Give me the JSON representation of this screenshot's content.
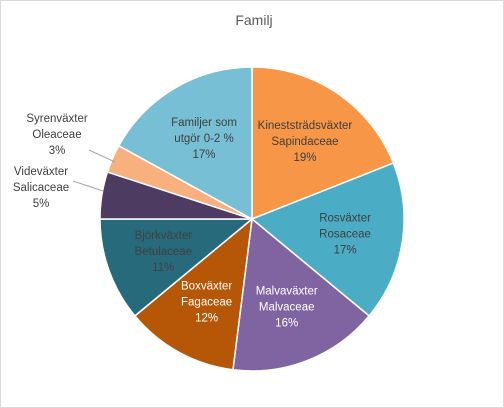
{
  "chart_data": {
    "type": "pie",
    "title": "Familj",
    "slices": [
      {
        "lines": [
          "Kineststrädsväxter",
          "Sapindaceae"
        ],
        "value": 19,
        "label": "19%",
        "color": "#f79646",
        "label_color": "#404040",
        "outside": false
      },
      {
        "lines": [
          "Rosväxter",
          "Rosaceae"
        ],
        "value": 17,
        "label": "17%",
        "color": "#4bacc6",
        "label_color": "#404040",
        "outside": false
      },
      {
        "lines": [
          "Malvaväxter",
          "Malvaceae"
        ],
        "value": 16,
        "label": "16%",
        "color": "#8064a2",
        "label_color": "#ffffff",
        "outside": false
      },
      {
        "lines": [
          "Boxväxter",
          "Fagaceae"
        ],
        "value": 12,
        "label": "12%",
        "color": "#b65708",
        "label_color": "#ffffff",
        "outside": false
      },
      {
        "lines": [
          "Björkväxter",
          "Betulaceae"
        ],
        "value": 11,
        "label": "11%",
        "color": "#276a7c",
        "label_color": "#404040",
        "outside": false
      },
      {
        "lines": [
          "Videväxter",
          "Salicaceae"
        ],
        "value": 5,
        "label": "5%",
        "color": "#4d3b62",
        "label_color": "#404040",
        "outside": true
      },
      {
        "lines": [
          "Syrenväxter",
          "Oleaceae"
        ],
        "value": 3,
        "label": "3%",
        "color": "#f9b07f",
        "label_color": "#404040",
        "outside": true
      },
      {
        "lines": [
          "Familjer som",
          "utgör 0-2 %"
        ],
        "value": 17,
        "label": "17%",
        "color": "#76bfd4",
        "label_color": "#404040",
        "outside": false
      }
    ]
  }
}
